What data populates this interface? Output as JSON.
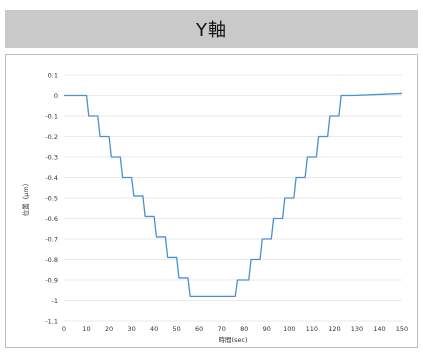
{
  "header": {
    "title": "Y軸"
  },
  "chart_data": {
    "type": "line",
    "title": "",
    "xlabel": "時間(sec)",
    "ylabel": "位置（μm）",
    "xlim": [
      0,
      150
    ],
    "ylim": [
      -1.1,
      0.1
    ],
    "x_ticks": [
      0,
      10,
      20,
      30,
      40,
      50,
      60,
      70,
      80,
      90,
      100,
      110,
      120,
      130,
      140,
      150
    ],
    "y_ticks": [
      0.1,
      0,
      -0.1,
      -0.2,
      -0.3,
      -0.4,
      -0.5,
      -0.6,
      -0.7,
      -0.8,
      -0.9,
      -1,
      -1.1
    ],
    "grid": "horizontal",
    "line_color": "#4a8fd4",
    "series": [
      {
        "name": "",
        "x": [
          0,
          10,
          11,
          15,
          16,
          20,
          21,
          25,
          26,
          30,
          31,
          35,
          36,
          40,
          41,
          45,
          46,
          50,
          51,
          55,
          56,
          61,
          62,
          76,
          77,
          82,
          83,
          87,
          88,
          92,
          93,
          97,
          98,
          102,
          103,
          107,
          108,
          112,
          113,
          117,
          118,
          122,
          123,
          127,
          128,
          150
        ],
        "y": [
          0,
          0,
          -0.1,
          -0.1,
          -0.2,
          -0.2,
          -0.3,
          -0.3,
          -0.4,
          -0.4,
          -0.49,
          -0.49,
          -0.59,
          -0.59,
          -0.69,
          -0.69,
          -0.79,
          -0.79,
          -0.89,
          -0.89,
          -0.98,
          -0.98,
          -0.98,
          -0.98,
          -0.9,
          -0.9,
          -0.8,
          -0.8,
          -0.7,
          -0.7,
          -0.6,
          -0.6,
          -0.5,
          -0.5,
          -0.4,
          -0.4,
          -0.3,
          -0.3,
          -0.2,
          -0.2,
          -0.1,
          -0.1,
          0,
          0,
          0,
          0.01
        ]
      }
    ]
  }
}
